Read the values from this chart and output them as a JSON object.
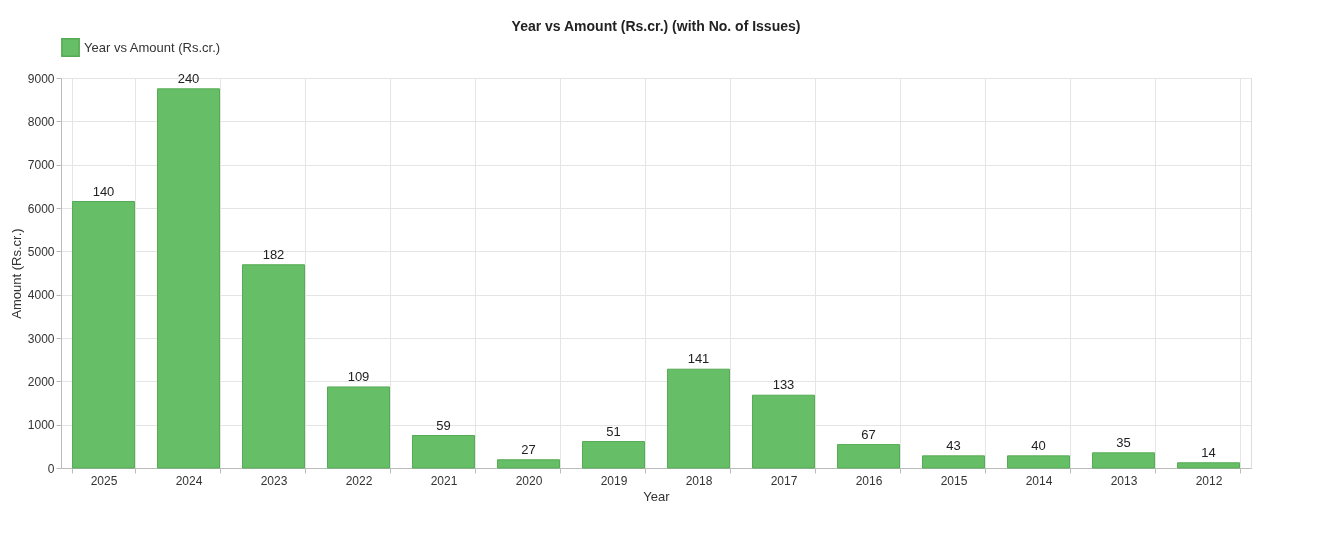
{
  "chart_data": {
    "type": "bar",
    "title": "Year vs Amount (Rs.cr.) (with No. of Issues)",
    "xlabel": "Year",
    "ylabel": "Amount (Rs.cr.)",
    "categories": [
      "2025",
      "2024",
      "2023",
      "2022",
      "2021",
      "2020",
      "2019",
      "2018",
      "2017",
      "2016",
      "2015",
      "2014",
      "2013",
      "2012"
    ],
    "series": [
      {
        "name": "Year vs Amount (Rs.cr.)",
        "color": "#66bf66",
        "values": [
          6150,
          8750,
          4690,
          1870,
          750,
          190,
          610,
          2280,
          1680,
          540,
          280,
          280,
          350,
          120
        ]
      }
    ],
    "annotations": [
      {
        "text": "140",
        "x": "2025",
        "y": 6150
      },
      {
        "text": "240",
        "x": "2024",
        "y": 8750
      },
      {
        "text": "182",
        "x": "2023",
        "y": 4690
      },
      {
        "text": "109",
        "x": "2022",
        "y": 1870
      },
      {
        "text": "59",
        "x": "2021",
        "y": 750
      },
      {
        "text": "27",
        "x": "2020",
        "y": 190
      },
      {
        "text": "51",
        "x": "2019",
        "y": 610
      },
      {
        "text": "141",
        "x": "2018",
        "y": 2280
      },
      {
        "text": "133",
        "x": "2017",
        "y": 1680
      },
      {
        "text": "67",
        "x": "2016",
        "y": 540
      },
      {
        "text": "43",
        "x": "2015",
        "y": 280
      },
      {
        "text": "40",
        "x": "2014",
        "y": 280
      },
      {
        "text": "35",
        "x": "2013",
        "y": 350
      },
      {
        "text": "14",
        "x": "2012",
        "y": 120
      }
    ],
    "ylim": [
      0,
      9000
    ],
    "yticks": [
      0,
      1000,
      2000,
      3000,
      4000,
      5000,
      6000,
      7000,
      8000,
      9000
    ],
    "grid": true,
    "legend": "top"
  }
}
